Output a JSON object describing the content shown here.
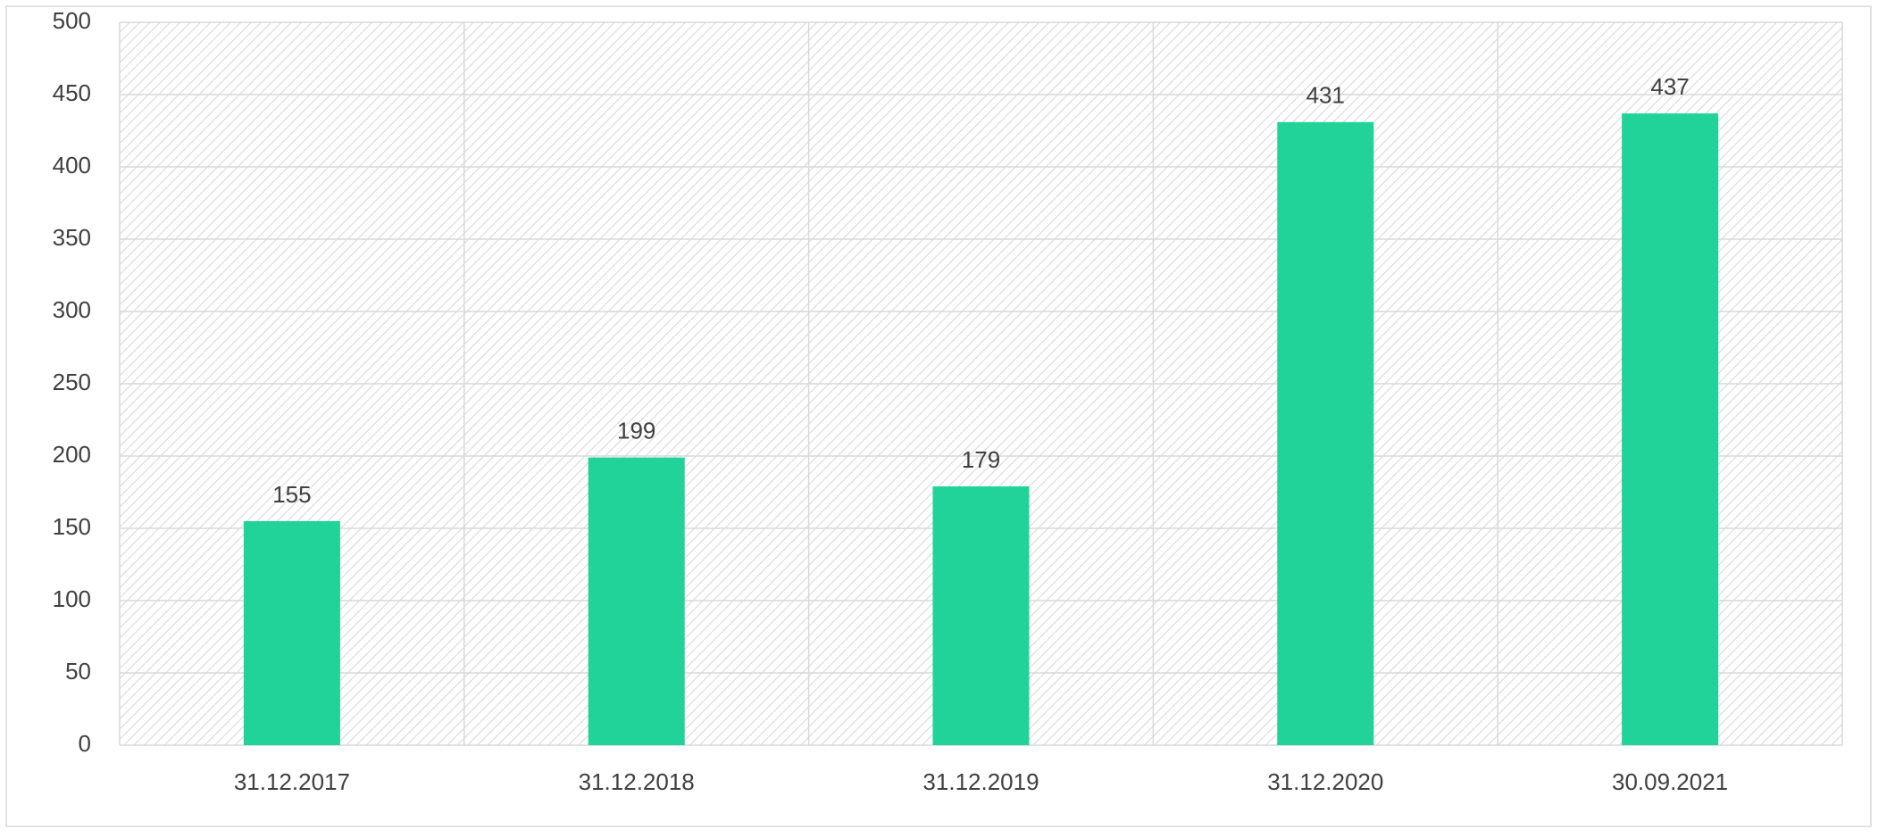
{
  "chart_data": {
    "type": "bar",
    "categories": [
      "31.12.2017",
      "31.12.2018",
      "31.12.2019",
      "31.12.2020",
      "30.09.2021"
    ],
    "values": [
      155,
      199,
      179,
      431,
      437
    ],
    "color": "#21d399",
    "ylim": [
      0,
      500
    ],
    "yticks": [
      0,
      50,
      100,
      150,
      200,
      250,
      300,
      350,
      400,
      450,
      500
    ],
    "grid": true
  }
}
